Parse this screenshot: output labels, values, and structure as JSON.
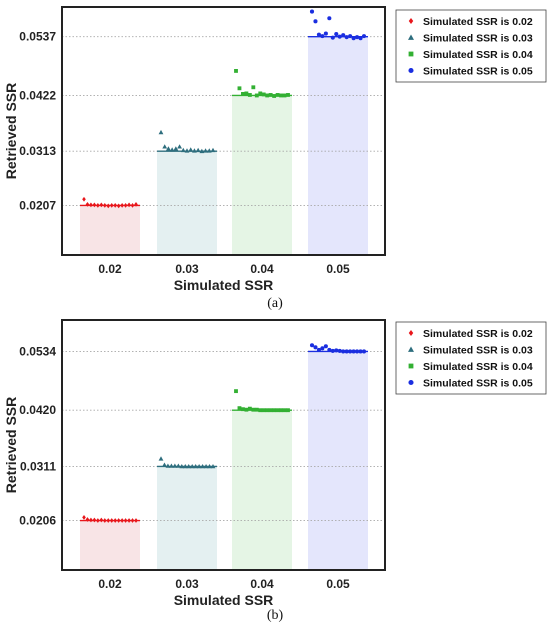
{
  "chart_data": [
    {
      "type": "bar",
      "caption": "(a)",
      "categories": [
        "0.02",
        "0.03",
        "0.04",
        "0.05"
      ],
      "xlabel": "Simulated SSR",
      "ylabel": "Retrieved SSR",
      "yticks": [
        "0.0207",
        "0.0313",
        "0.0422",
        "0.0537"
      ],
      "ylim": [
        0.011,
        0.0595
      ],
      "grid": "horizontal dotted at y ticks",
      "legend_position": "outside-right",
      "bars": [
        {
          "series": "Simulated SSR is 0.02",
          "value": 0.0207
        },
        {
          "series": "Simulated SSR is 0.03",
          "value": 0.0313
        },
        {
          "series": "Simulated SSR is 0.04",
          "value": 0.0422
        },
        {
          "series": "Simulated SSR is 0.05",
          "value": 0.0537
        }
      ],
      "series": [
        {
          "name": "Simulated SSR is 0.02",
          "color": "#e8161b",
          "marker": "diamond",
          "bar_color": "#f8e4e6",
          "points": [
            0.0219,
            0.0209,
            0.0208,
            0.0208,
            0.0207,
            0.0208,
            0.0207,
            0.0206,
            0.0207,
            0.0207,
            0.0206,
            0.0207,
            0.0207,
            0.0208,
            0.0207,
            0.0209
          ]
        },
        {
          "name": "Simulated SSR is 0.03",
          "color": "#2e6e7e",
          "marker": "triangle",
          "bar_color": "#e4f0f1",
          "points": [
            0.035,
            0.0322,
            0.0318,
            0.0316,
            0.0318,
            0.0322,
            0.0315,
            0.0314,
            0.0316,
            0.0314,
            0.0315,
            0.0313,
            0.0314,
            0.0314,
            0.0315
          ]
        },
        {
          "name": "Simulated SSR is 0.04",
          "color": "#33b033",
          "marker": "square",
          "bar_color": "#e5f5e5",
          "points": [
            0.047,
            0.0436,
            0.0425,
            0.0426,
            0.0423,
            0.0438,
            0.0422,
            0.0426,
            0.0424,
            0.0422,
            0.0423,
            0.0421,
            0.0423,
            0.0422,
            0.0422,
            0.0423
          ]
        },
        {
          "name": "Simulated SSR is 0.05",
          "color": "#1a2ee0",
          "marker": "circle",
          "bar_color": "#e4e6fc",
          "points": [
            0.0586,
            0.0567,
            0.0541,
            0.0538,
            0.0543,
            0.0573,
            0.0535,
            0.0542,
            0.0537,
            0.054,
            0.0536,
            0.0538,
            0.0534,
            0.0536,
            0.0534,
            0.0538
          ]
        }
      ]
    },
    {
      "type": "bar",
      "caption": "(b)",
      "categories": [
        "0.02",
        "0.03",
        "0.04",
        "0.05"
      ],
      "xlabel": "Simulated SSR",
      "ylabel": "Retrieved SSR",
      "yticks": [
        "0.0206",
        "0.0311",
        "0.0420",
        "0.0534"
      ],
      "ylim": [
        0.011,
        0.0595
      ],
      "grid": "horizontal dotted at y ticks",
      "legend_position": "outside-right",
      "bars": [
        {
          "series": "Simulated SSR is 0.02",
          "value": 0.0206
        },
        {
          "series": "Simulated SSR is 0.03",
          "value": 0.0311
        },
        {
          "series": "Simulated SSR is 0.04",
          "value": 0.042
        },
        {
          "series": "Simulated SSR is 0.05",
          "value": 0.0534
        }
      ],
      "series": [
        {
          "name": "Simulated SSR is 0.02",
          "color": "#e8161b",
          "marker": "diamond",
          "bar_color": "#f8e4e6",
          "points": [
            0.0212,
            0.0208,
            0.0207,
            0.0207,
            0.0206,
            0.0207,
            0.0206,
            0.0206,
            0.0206,
            0.0206,
            0.0206,
            0.0206,
            0.0206,
            0.0206,
            0.0206,
            0.0206
          ]
        },
        {
          "name": "Simulated SSR is 0.03",
          "color": "#2e6e7e",
          "marker": "triangle",
          "bar_color": "#e4f0f1",
          "points": [
            0.0326,
            0.0314,
            0.0312,
            0.0312,
            0.0312,
            0.0312,
            0.0311,
            0.0311,
            0.0311,
            0.0311,
            0.0311,
            0.0311,
            0.0311,
            0.0311,
            0.0311,
            0.0311
          ]
        },
        {
          "name": "Simulated SSR is 0.04",
          "color": "#33b033",
          "marker": "square",
          "bar_color": "#e5f5e5",
          "points": [
            0.0457,
            0.0424,
            0.0422,
            0.0421,
            0.0423,
            0.0421,
            0.0421,
            0.042,
            0.042,
            0.042,
            0.042,
            0.042,
            0.042,
            0.042,
            0.042,
            0.042
          ]
        },
        {
          "name": "Simulated SSR is 0.05",
          "color": "#1a2ee0",
          "marker": "circle",
          "bar_color": "#e4e6fc",
          "points": [
            0.0546,
            0.0542,
            0.0537,
            0.054,
            0.0544,
            0.0537,
            0.0535,
            0.0536,
            0.0535,
            0.0534,
            0.0534,
            0.0534,
            0.0534,
            0.0534,
            0.0534,
            0.0534
          ]
        }
      ]
    }
  ]
}
